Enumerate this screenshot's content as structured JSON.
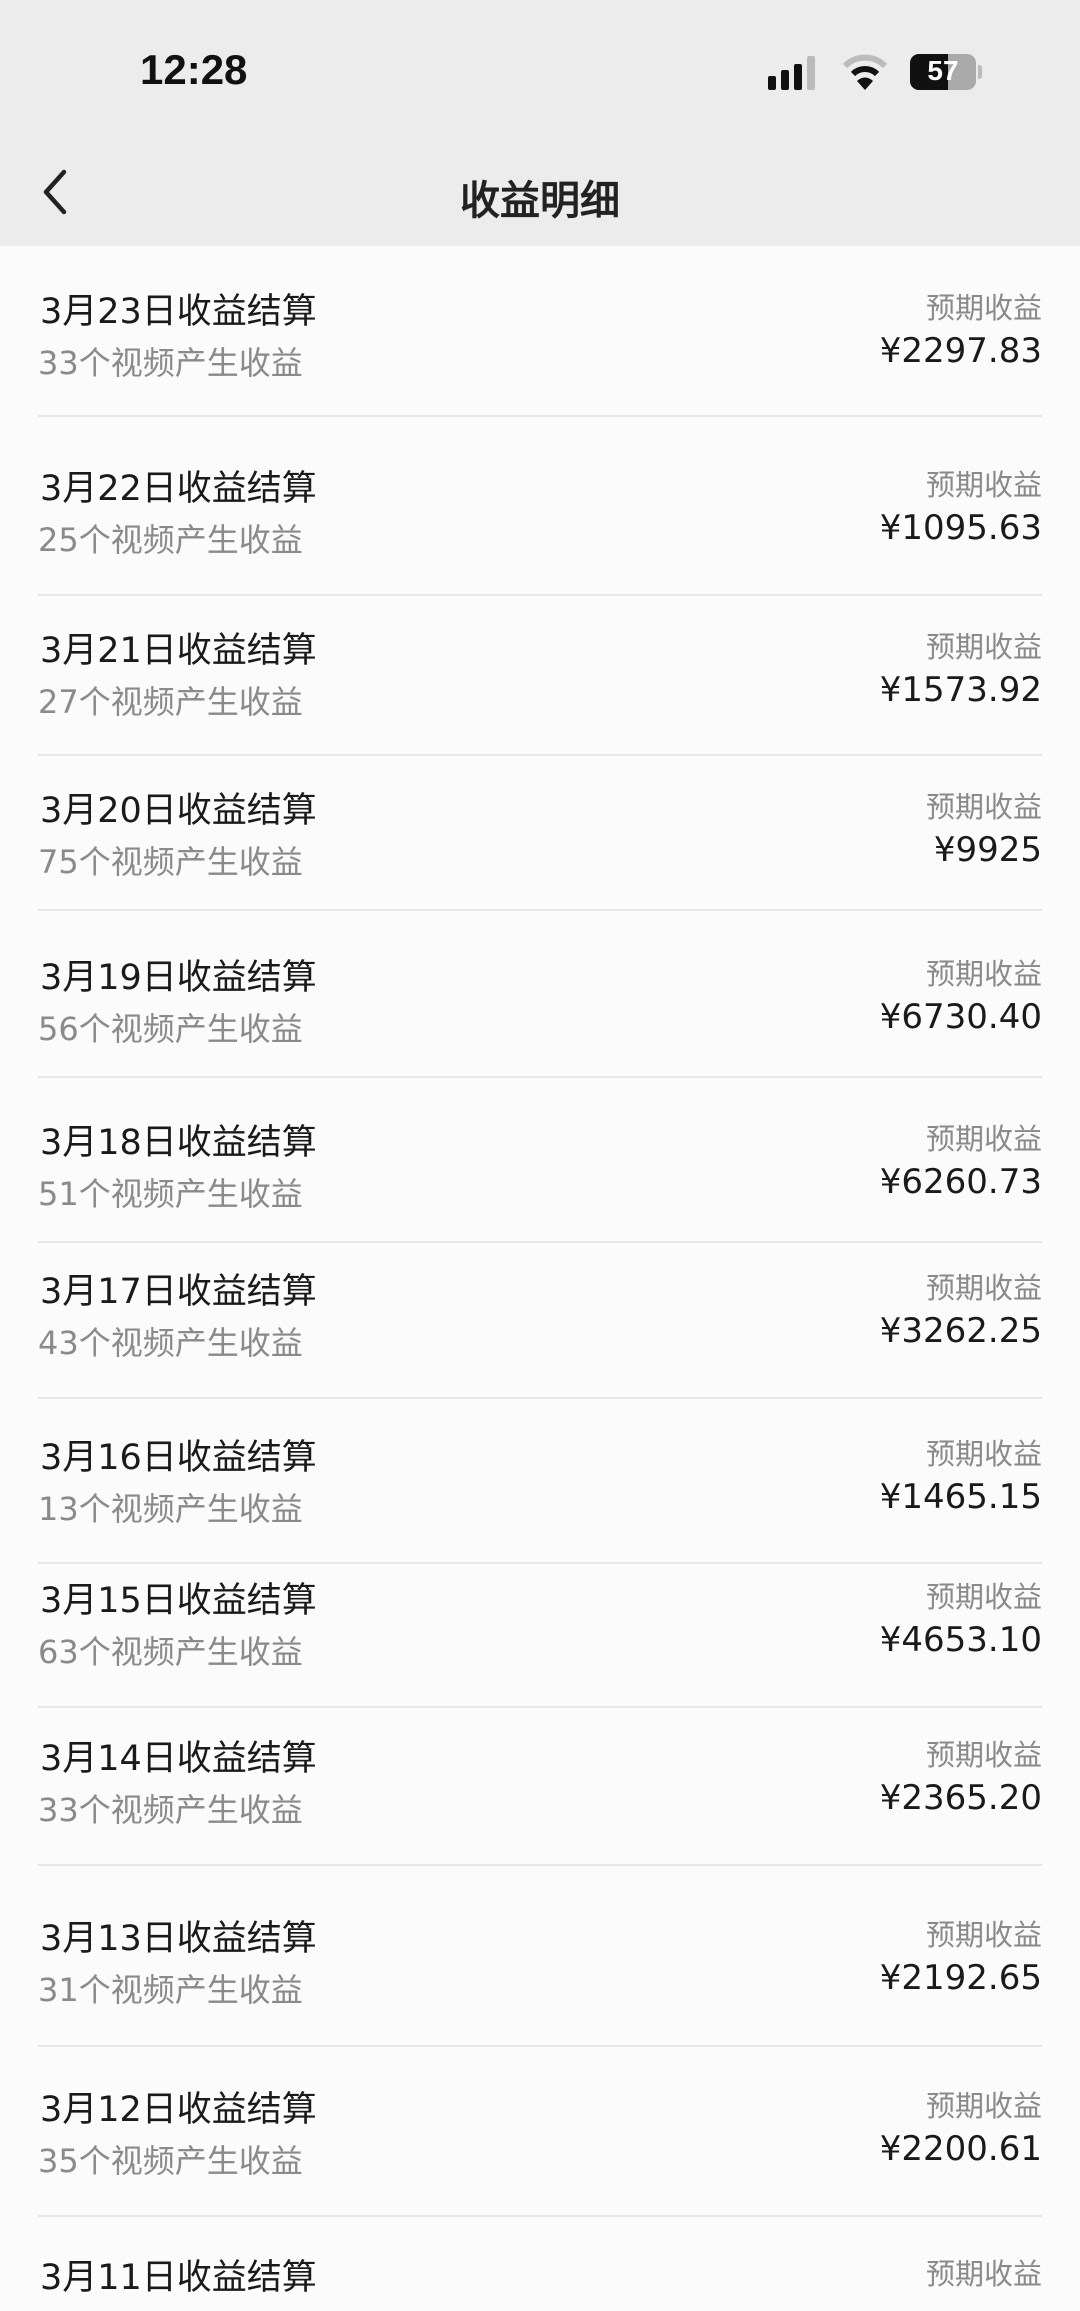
{
  "status_bar": {
    "time": "12:28",
    "battery": "57",
    "battery_level": 57
  },
  "header": {
    "title": "收益明细",
    "back_icon": "chevron-left-icon"
  },
  "items": [
    {
      "title": "3月23日收益结算",
      "subtitle": "33个视频产生收益",
      "label": "预期收益",
      "amount": "¥2297.83"
    },
    {
      "title": "3月22日收益结算",
      "subtitle": "25个视频产生收益",
      "label": "预期收益",
      "amount": "¥1095.63"
    },
    {
      "title": "3月21日收益结算",
      "subtitle": "27个视频产生收益",
      "label": "预期收益",
      "amount": "¥1573.92"
    },
    {
      "title": "3月20日收益结算",
      "subtitle": "75个视频产生收益",
      "label": "预期收益",
      "amount": "¥9925"
    },
    {
      "title": "3月19日收益结算",
      "subtitle": "56个视频产生收益",
      "label": "预期收益",
      "amount": "¥6730.40"
    },
    {
      "title": "3月18日收益结算",
      "subtitle": "51个视频产生收益",
      "label": "预期收益",
      "amount": "¥6260.73"
    },
    {
      "title": "3月17日收益结算",
      "subtitle": "43个视频产生收益",
      "label": "预期收益",
      "amount": "¥3262.25"
    },
    {
      "title": "3月16日收益结算",
      "subtitle": "13个视频产生收益",
      "label": "预期收益",
      "amount": "¥1465.15"
    },
    {
      "title": "3月15日收益结算",
      "subtitle": "63个视频产生收益",
      "label": "预期收益",
      "amount": "¥4653.10"
    },
    {
      "title": "3月14日收益结算",
      "subtitle": "33个视频产生收益",
      "label": "预期收益",
      "amount": "¥2365.20"
    },
    {
      "title": "3月13日收益结算",
      "subtitle": "31个视频产生收益",
      "label": "预期收益",
      "amount": "¥2192.65"
    },
    {
      "title": "3月12日收益结算",
      "subtitle": "35个视频产生收益",
      "label": "预期收益",
      "amount": "¥2200.61"
    },
    {
      "title": "3月11日收益结算",
      "label": "预期收益"
    }
  ]
}
